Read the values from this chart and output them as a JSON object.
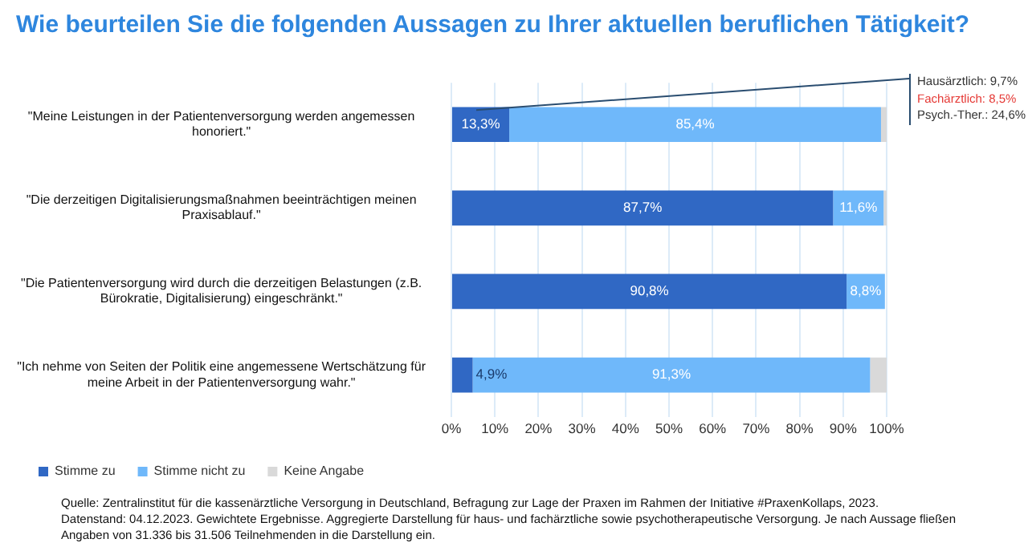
{
  "chart_data": {
    "type": "bar",
    "orientation": "horizontal",
    "stacked": true,
    "title": "Wie beurteilen Sie die folgenden Aussagen zu Ihrer aktuellen beruflichen Tätigkeit?",
    "categories": [
      "\"Meine Leistungen in der Patientenversorgung werden angemessen honoriert.\"",
      "\"Die derzeitigen Digitalisierungsmaßnahmen beeinträchtigen meinen Praxisablauf.\"",
      "\"Die Patientenversorgung wird durch die derzeitigen Belastungen (z.B. Bürokratie, Digitalisierung) eingeschränkt.\"",
      "\"Ich nehme von Seiten der Politik eine angemessene Wertschätzung für meine Arbeit in der Patientenversorgung wahr.\""
    ],
    "series": [
      {
        "name": "Stimme zu",
        "color": "#3068c4",
        "values": [
          13.3,
          87.7,
          90.8,
          4.9
        ],
        "value_labels": [
          "13,3%",
          "87,7%",
          "90,8%",
          "4,9%"
        ]
      },
      {
        "name": "Stimme nicht zu",
        "color": "#6fb8fa",
        "values": [
          85.4,
          11.6,
          8.8,
          91.3
        ],
        "value_labels": [
          "85,4%",
          "11,6%",
          "8,8%",
          "91,3%"
        ]
      },
      {
        "name": "Keine Angabe",
        "color": "#d9d9d9",
        "values": [
          1.3,
          0.7,
          null,
          3.8
        ]
      }
    ],
    "xlim": [
      0,
      100
    ],
    "xticks": [
      {
        "value": 0,
        "label": "0%"
      },
      {
        "value": 10,
        "label": "10%"
      },
      {
        "value": 20,
        "label": "20%"
      },
      {
        "value": 30,
        "label": "30%"
      },
      {
        "value": 40,
        "label": "40%"
      },
      {
        "value": 50,
        "label": "50%"
      },
      {
        "value": 60,
        "label": "60%"
      },
      {
        "value": 70,
        "label": "70%"
      },
      {
        "value": 80,
        "label": "80%"
      },
      {
        "value": 90,
        "label": "90%"
      },
      {
        "value": 100,
        "label": "100%"
      }
    ],
    "grid": "x",
    "legend": "bottom",
    "annotations": [
      "Hausärztlich: 9,7%",
      "Fachärztlich: 8,5%",
      "Psych.-Ther.: 24,6%",
      "Quelle: Zentralinstitut für die kassenärztliche Versorgung in Deutschland, Befragung zur Lage der Praxen im Rahmen der Initiative #PraxenKollaps, 2023.",
      "Datenstand: 04.12.2023. Gewichtete Ergebnisse. Aggregierte Darstellung für haus- und fachärztliche sowie psychotherapeutische Versorgung. Je nach Aussage fließen Angaben von 31.336 bis 31.506 Teilnehmenden in die Darstellung ein."
    ]
  }
}
